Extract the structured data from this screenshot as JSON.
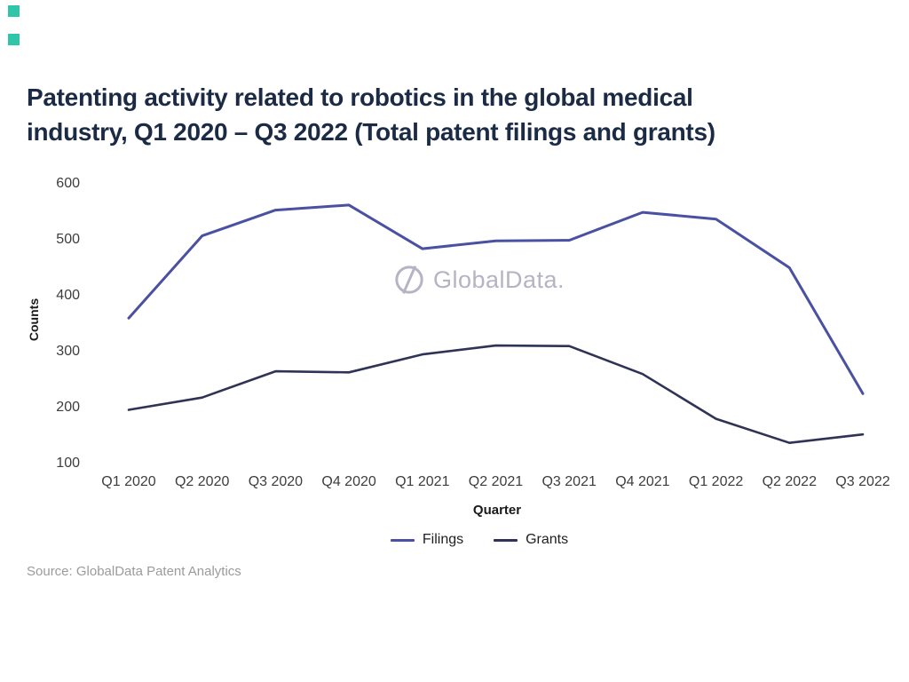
{
  "page": {
    "background": "#ffffff",
    "accent_color": "#2fc5a9"
  },
  "header": {
    "title_line1": "Patenting activity related to robotics in the global medical",
    "title_line2": "industry, Q1 2020 – Q3 2022 (Total patent filings and grants)",
    "title_color": "#1c2b45"
  },
  "watermark": {
    "icon": "globaldata-logo-circle-slash",
    "text": "GlobalData.",
    "color": "#b5b3c4"
  },
  "source": {
    "text": "Source: GlobalData Patent Analytics"
  },
  "chart_data": {
    "type": "line",
    "title": "Patenting activity related to robotics in the global medical industry, Q1 2020 – Q3 2022 (Total patent filings and grants)",
    "categories": [
      "Q1 2020",
      "Q2 2020",
      "Q3 2020",
      "Q4 2020",
      "Q1 2021",
      "Q2 2021",
      "Q3 2021",
      "Q4 2021",
      "Q1 2022",
      "Q2 2022",
      "Q3 2022"
    ],
    "series": [
      {
        "name": "Filings",
        "color": "#4a50a2",
        "stroke_width": 3,
        "values": [
          360,
          507,
          553,
          562,
          484,
          498,
          499,
          549,
          537,
          450,
          225
        ]
      },
      {
        "name": "Grants",
        "color": "#2f3356",
        "stroke_width": 2.6,
        "values": [
          196,
          218,
          265,
          263,
          295,
          311,
          310,
          260,
          180,
          137,
          152
        ]
      }
    ],
    "xlabel": "Quarter",
    "ylabel": "Counts",
    "yticks": [
      600,
      500,
      400,
      300,
      200,
      100
    ],
    "ylim": [
      100,
      600
    ],
    "grid": false,
    "legend_position": "bottom"
  }
}
